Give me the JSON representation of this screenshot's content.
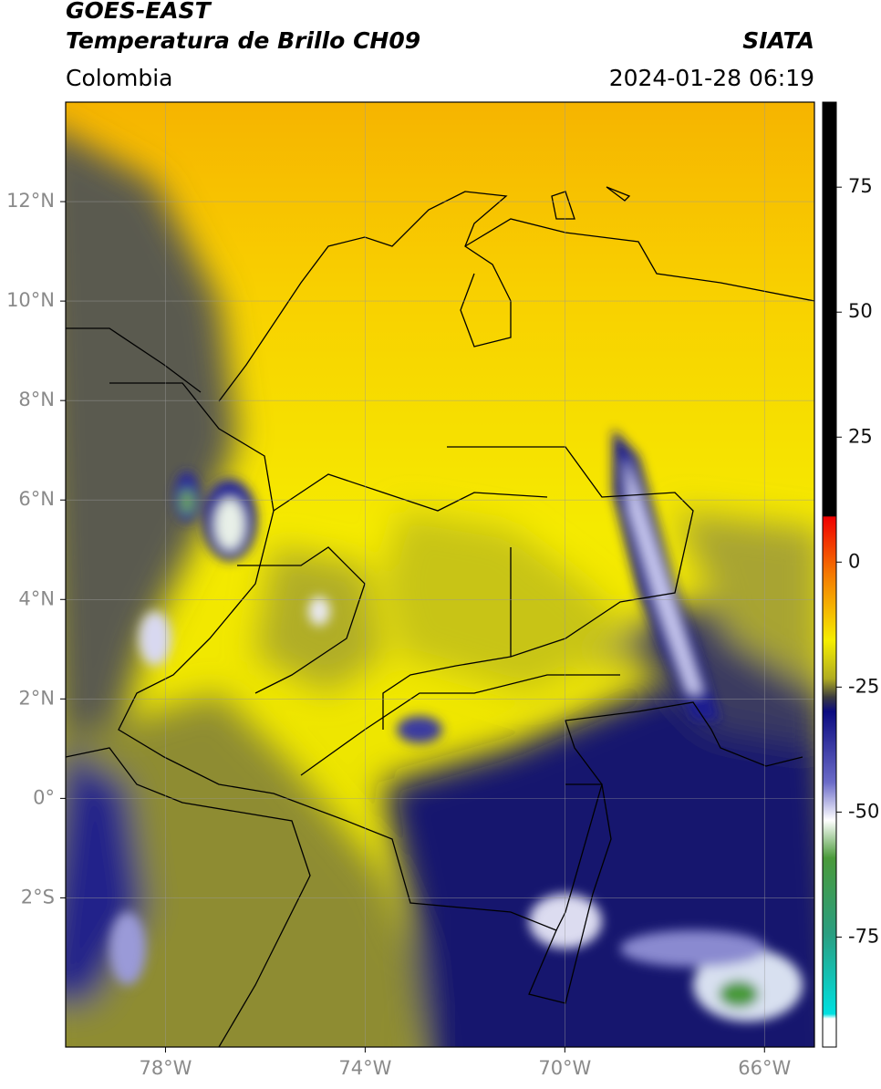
{
  "chart_data": {
    "type": "map",
    "title": "GOES-EAST",
    "subtitle": "Temperatura de Brillo CH09",
    "source": "SIATA",
    "region": "Colombia",
    "datetime": "2024-01-28 06:19",
    "xlim": [
      -80,
      -65
    ],
    "ylim": [
      -5,
      14
    ],
    "xticks": [
      {
        "value": -78,
        "label": "78°W"
      },
      {
        "value": -74,
        "label": "74°W"
      },
      {
        "value": -70,
        "label": "70°W"
      },
      {
        "value": -66,
        "label": "66°W"
      }
    ],
    "yticks": [
      {
        "value": 12,
        "label": "12°N"
      },
      {
        "value": 10,
        "label": "10°N"
      },
      {
        "value": 8,
        "label": "8°N"
      },
      {
        "value": 6,
        "label": "6°N"
      },
      {
        "value": 4,
        "label": "4°N"
      },
      {
        "value": 2,
        "label": "2°N"
      },
      {
        "value": 0,
        "label": "0°"
      },
      {
        "value": -2,
        "label": "2°S"
      }
    ],
    "grid": true,
    "colorbar": {
      "lim": [
        -97,
        92
      ],
      "ticks": [
        75,
        50,
        25,
        0,
        -25,
        -50,
        -75
      ]
    }
  }
}
